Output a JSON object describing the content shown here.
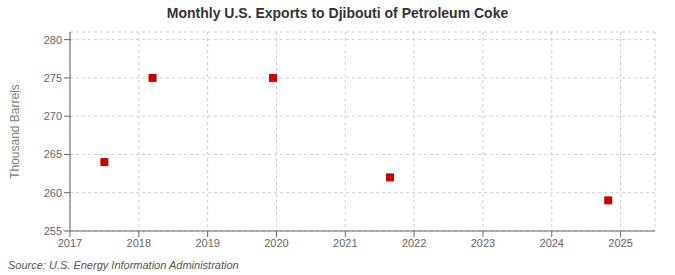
{
  "chart_data": {
    "type": "scatter",
    "title": "Monthly U.S. Exports to Djibouti of Petroleum Coke",
    "y_label": "Thousand Barrels",
    "source": "Source: U.S. Energy Information Administration",
    "x": [
      2017.5,
      2018.2,
      2019.95,
      2021.65,
      2024.82
    ],
    "values": [
      264,
      275,
      275,
      262,
      259
    ],
    "color": "#cc0000",
    "marker": "square",
    "xlim": [
      2017,
      2025.5
    ],
    "xticks": [
      2017,
      2018,
      2019,
      2020,
      2021,
      2022,
      2023,
      2024,
      2025
    ],
    "ylim": [
      255,
      281
    ],
    "yticks": [
      255,
      260,
      265,
      270,
      275,
      280
    ],
    "grid": true
  }
}
